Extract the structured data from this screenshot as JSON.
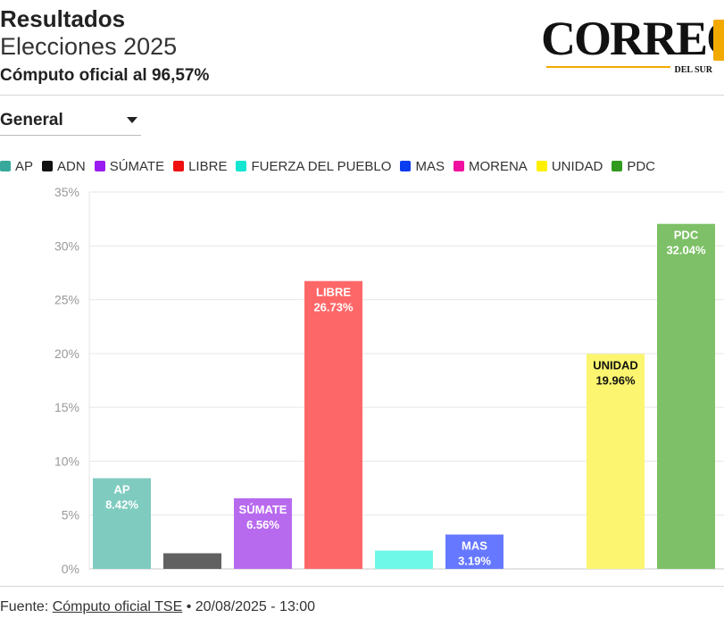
{
  "header": {
    "title": "Resultados",
    "subtitle": "Elecciones 2025",
    "note": "Cómputo oficial al 96,57%"
  },
  "logo": {
    "word": "CORREO",
    "sub": "DEL SUR",
    "accent_color": "#f2a900"
  },
  "filter": {
    "selected": "General"
  },
  "chart_data": {
    "type": "bar",
    "categories": [
      "AP",
      "ADN",
      "SÚMATE",
      "LIBRE",
      "FUERZA DEL PUEBLO",
      "MAS",
      "MORENA",
      "UNIDAD",
      "PDC"
    ],
    "values": [
      8.42,
      1.45,
      6.56,
      26.73,
      1.7,
      3.19,
      0,
      19.96,
      32.04
    ],
    "value_labels": [
      "8.42%",
      "",
      "6.56%",
      "26.73%",
      "",
      "3.19%",
      "",
      "19.96%",
      "32.04%"
    ],
    "bar_labels": [
      "AP",
      "",
      "SÚMATE",
      "LIBRE",
      "",
      "MAS",
      "",
      "UNIDAD",
      "PDC"
    ],
    "colors": [
      "#7fcbbf",
      "#616161",
      "#b86aef",
      "#fe6768",
      "#6ef8e8",
      "#6678ff",
      "#f060c0",
      "#fbf56f",
      "#7dc067"
    ],
    "legend_colors": [
      "#36a99a",
      "#111111",
      "#9b1cf0",
      "#ee1010",
      "#14e6d2",
      "#0a3cf0",
      "#f010a0",
      "#fff000",
      "#2f9a1e"
    ],
    "ylim": [
      0,
      35
    ],
    "yticks": [
      0,
      5,
      10,
      15,
      20,
      25,
      30,
      35
    ],
    "ytick_labels": [
      "0%",
      "5%",
      "10%",
      "15%",
      "20%",
      "25%",
      "30%",
      "35%"
    ],
    "grid": true,
    "legend_position": "top-left"
  },
  "footer": {
    "prefix": "Fuente: ",
    "link": "Cómputo oficial TSE",
    "suffix": " • 20/08/2025 - 13:00"
  }
}
